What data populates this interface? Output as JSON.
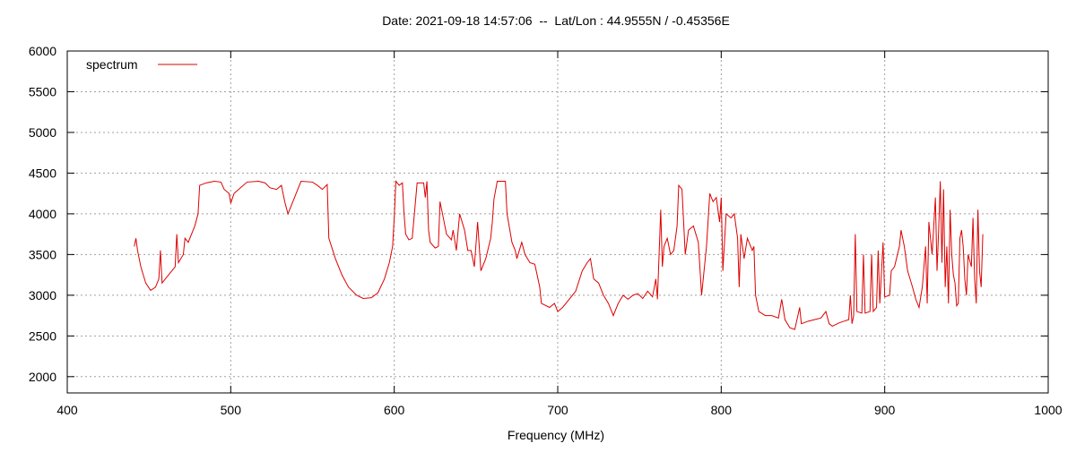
{
  "chart_data": {
    "type": "line",
    "title": "Date: 2021-09-18 14:57:06  --  Lat/Lon : 44.9555N / -0.45356E",
    "xlabel": "Frequency (MHz)",
    "xlim": [
      400,
      1000
    ],
    "ylim": [
      1800,
      6000
    ],
    "xticks": [
      400,
      500,
      600,
      700,
      800,
      900,
      1000
    ],
    "yticks": [
      2000,
      2500,
      3000,
      3500,
      4000,
      4500,
      5000,
      5500,
      6000
    ],
    "grid": true,
    "legend": "top-left",
    "x": [
      441,
      442,
      443,
      445,
      448,
      451,
      454,
      456,
      457,
      458,
      462,
      466,
      467,
      468,
      471,
      472,
      474,
      478,
      480,
      481,
      485,
      490,
      494,
      496,
      499,
      500,
      502,
      506,
      510,
      517,
      521,
      524,
      528,
      531,
      533,
      535,
      537,
      541,
      543,
      550,
      553,
      556,
      559,
      560,
      564,
      568,
      572,
      577,
      581,
      586,
      590,
      594,
      597,
      599,
      600,
      601,
      603,
      605,
      606,
      607,
      609,
      611,
      614,
      618,
      619,
      620,
      621,
      622,
      625,
      627,
      628,
      630,
      632,
      635,
      636,
      638,
      640,
      643,
      645,
      647,
      649,
      651,
      653,
      656,
      659,
      660,
      661,
      663,
      668,
      669,
      672,
      674,
      675,
      678,
      680,
      683,
      686,
      689,
      690,
      695,
      698,
      700,
      703,
      707,
      711,
      715,
      718,
      720,
      722,
      725,
      728,
      731,
      734,
      737,
      740,
      743,
      746,
      749,
      752,
      755,
      758,
      760,
      761,
      763,
      764,
      765,
      767,
      769,
      771,
      773,
      774,
      776,
      778,
      780,
      783,
      786,
      788,
      791,
      793,
      795,
      797,
      799,
      800,
      801,
      803,
      806,
      808,
      810,
      811,
      812,
      814,
      816,
      819,
      820,
      821,
      823,
      827,
      831,
      835,
      837,
      839,
      842,
      845,
      848,
      849,
      853,
      857,
      861,
      864,
      866,
      868,
      872,
      875,
      878,
      879,
      880,
      881,
      882,
      883,
      886,
      887,
      888,
      891,
      892,
      893,
      895,
      896,
      897,
      899,
      900,
      903,
      904,
      906,
      909,
      910,
      912,
      914,
      917,
      919,
      921,
      923,
      925,
      926,
      927,
      929,
      931,
      932,
      933,
      934,
      935,
      936,
      937,
      938,
      939,
      940,
      941,
      942,
      943,
      944,
      945,
      946,
      947,
      948,
      949,
      950,
      951,
      953,
      954,
      955,
      956,
      957,
      958,
      959,
      960
    ],
    "series": [
      {
        "name": "spectrum",
        "color": "#dd0000",
        "values": [
          3600,
          3700,
          3550,
          3350,
          3150,
          3060,
          3100,
          3200,
          3550,
          3150,
          3250,
          3350,
          3750,
          3400,
          3500,
          3700,
          3650,
          3850,
          4000,
          4350,
          4380,
          4400,
          4390,
          4300,
          4250,
          4130,
          4250,
          4320,
          4390,
          4400,
          4380,
          4320,
          4300,
          4350,
          4150,
          4000,
          4100,
          4300,
          4400,
          4390,
          4350,
          4300,
          4360,
          3700,
          3450,
          3250,
          3100,
          3000,
          2960,
          2970,
          3030,
          3200,
          3400,
          3600,
          3950,
          4400,
          4350,
          4380,
          4000,
          3750,
          3680,
          3700,
          4380,
          4380,
          4200,
          4400,
          3800,
          3650,
          3580,
          3600,
          4150,
          3950,
          3750,
          3680,
          3800,
          3550,
          4000,
          3800,
          3550,
          3550,
          3350,
          3900,
          3300,
          3450,
          3700,
          3900,
          4180,
          4400,
          4400,
          4000,
          3650,
          3550,
          3450,
          3650,
          3500,
          3400,
          3380,
          3100,
          2900,
          2850,
          2900,
          2800,
          2850,
          2950,
          3050,
          3300,
          3400,
          3450,
          3200,
          3150,
          3000,
          2900,
          2750,
          2900,
          3000,
          2950,
          3000,
          3020,
          2960,
          3050,
          2980,
          3200,
          2950,
          4050,
          3350,
          3600,
          3700,
          3500,
          3550,
          3850,
          4350,
          4300,
          3500,
          3800,
          3850,
          3650,
          3000,
          3600,
          4250,
          4150,
          4200,
          3900,
          4200,
          3300,
          4000,
          3950,
          4000,
          3700,
          3100,
          3750,
          3450,
          3700,
          3550,
          3600,
          3000,
          2800,
          2750,
          2750,
          2720,
          2950,
          2700,
          2600,
          2580,
          2850,
          2650,
          2680,
          2700,
          2720,
          2800,
          2650,
          2620,
          2660,
          2680,
          2700,
          3000,
          2650,
          2750,
          3750,
          2800,
          2780,
          3500,
          2780,
          2800,
          3500,
          2800,
          2850,
          3550,
          2900,
          3650,
          2980,
          3000,
          3300,
          3350,
          3600,
          3800,
          3600,
          3300,
          3100,
          2950,
          2850,
          3100,
          3600,
          2900,
          3900,
          3500,
          4200,
          3300,
          3800,
          4400,
          3400,
          4300,
          3100,
          3600,
          2900,
          4050,
          3500,
          3250,
          3150,
          2870,
          2900,
          3700,
          3800,
          3600,
          3200,
          3000,
          3500,
          3350,
          3950,
          3200,
          2900,
          4050,
          3300,
          3100,
          3750
        ]
      }
    ]
  }
}
